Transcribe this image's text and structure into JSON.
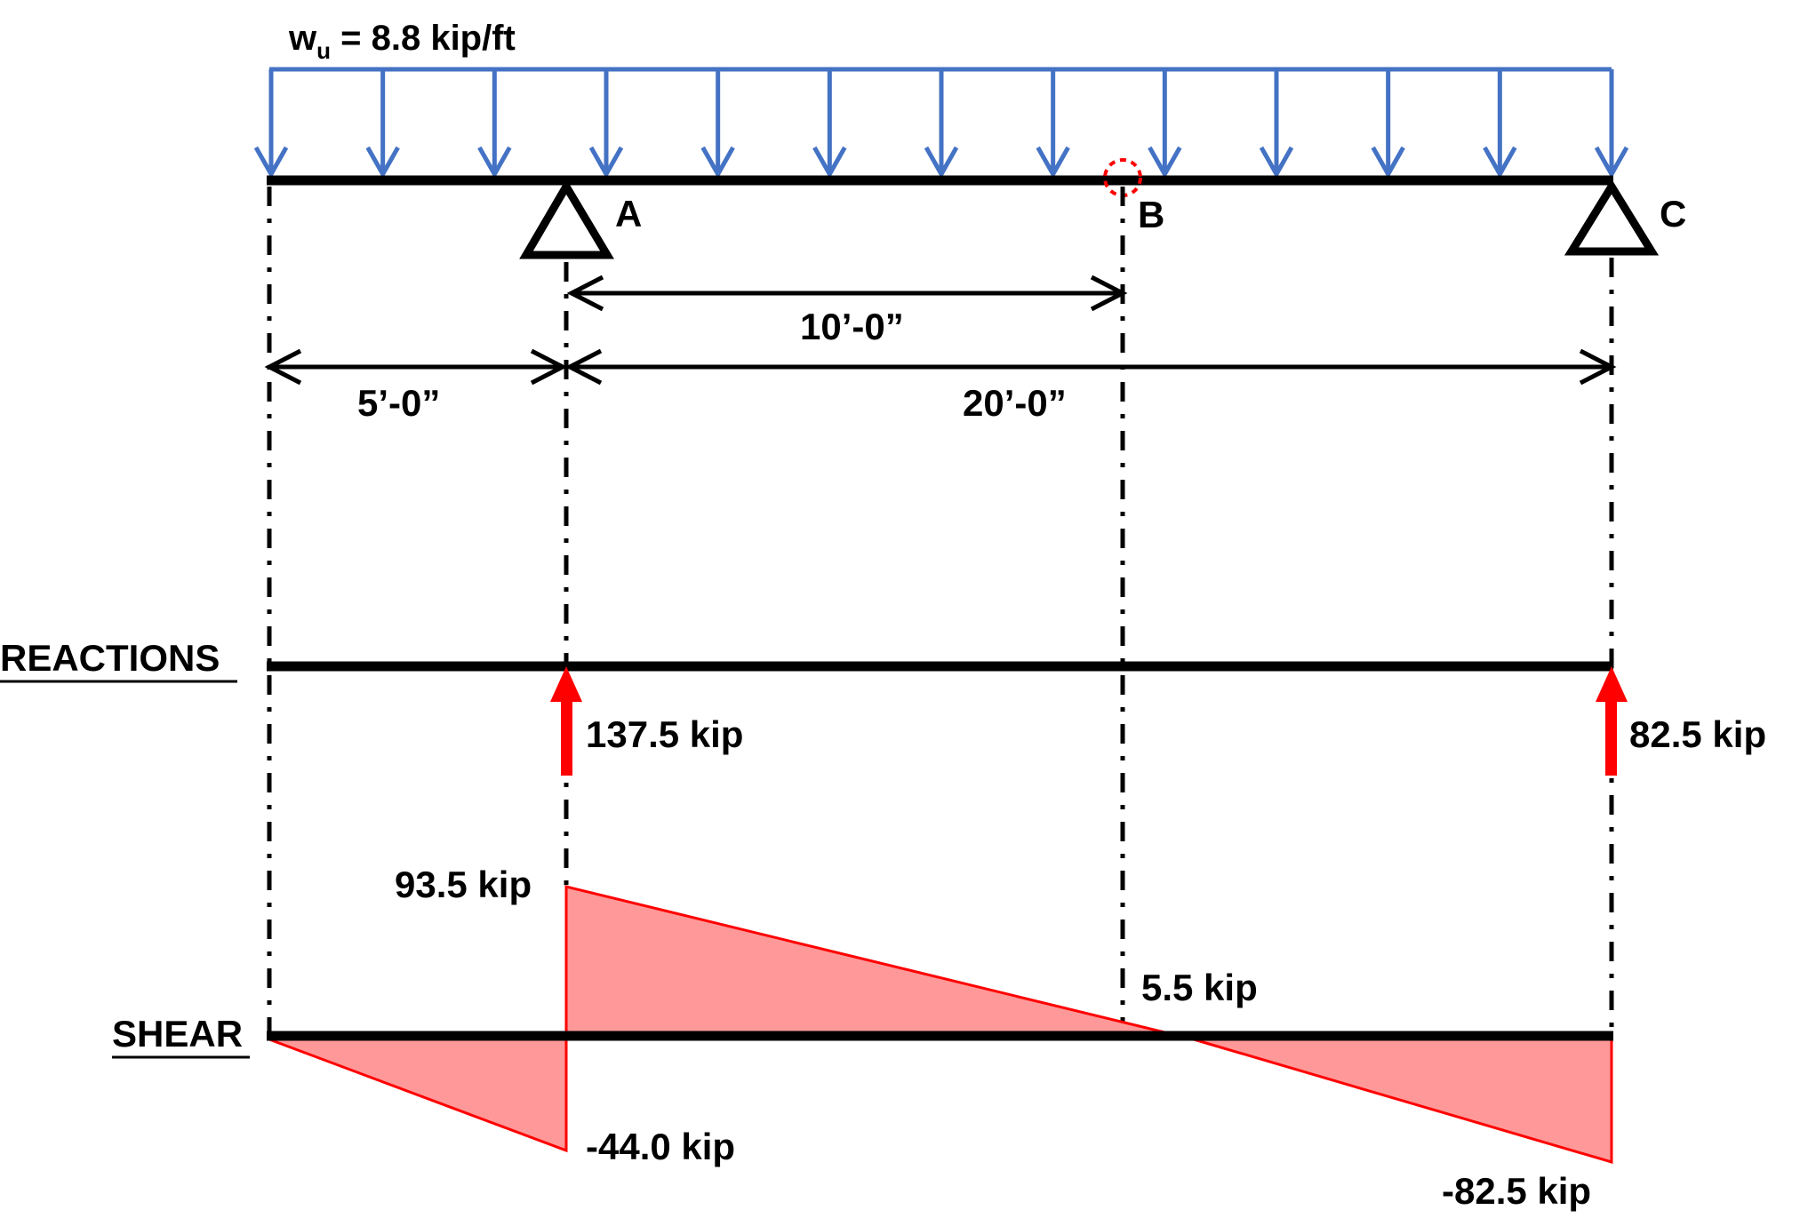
{
  "load": {
    "symbol": "w",
    "subscript": "u",
    "value_text": " = 8.8 kip/ft",
    "color": "#4472C4"
  },
  "supports": {
    "a_label": "A",
    "b_label": "B",
    "c_label": "C"
  },
  "dimensions": {
    "overhang": "5’-0”",
    "a_to_b": "10’-0”",
    "a_to_c": "20’-0”"
  },
  "reactions": {
    "heading": "REACTIONS",
    "ra": "137.5 kip",
    "rc": "82.5 kip",
    "color": "#FF0000"
  },
  "shear": {
    "heading": "SHEAR",
    "v_left_a": "-44.0 kip",
    "v_right_a": "93.5 kip",
    "v_at_b": "5.5 kip",
    "v_at_c": "-82.5 kip",
    "fill": "#FF9999",
    "stroke": "#FF0000"
  },
  "hinge_marker_color": "#FF0000"
}
